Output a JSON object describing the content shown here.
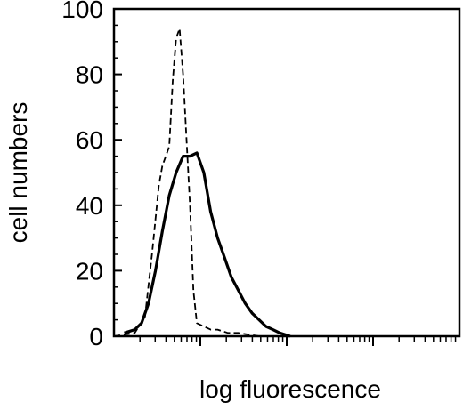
{
  "chart_data": {
    "type": "line",
    "xlabel": "log fluorescence",
    "ylabel": "cell numbers",
    "x_scale": "log",
    "x_range_decades": 4,
    "ylim": [
      0,
      100
    ],
    "y_ticks": [
      0,
      20,
      40,
      60,
      80,
      100
    ],
    "grid": false,
    "legend": "none",
    "series": [
      {
        "style": "dashed",
        "color": "#000000",
        "x": [
          0.0,
          0.06,
          0.09,
          0.11,
          0.13,
          0.14,
          0.16,
          0.17,
          0.18,
          0.19,
          0.2,
          0.21,
          0.22,
          0.23,
          0.24,
          0.26,
          0.28,
          0.3,
          0.33,
          0.36,
          0.42,
          0.5
        ],
        "y": [
          0,
          1,
          6,
          25,
          46,
          52,
          58,
          78,
          91,
          94,
          80,
          60,
          40,
          14,
          4,
          3,
          2,
          2,
          1,
          1,
          0,
          0
        ]
      },
      {
        "style": "solid",
        "color": "#000000",
        "x": [
          0.03,
          0.06,
          0.08,
          0.1,
          0.12,
          0.14,
          0.16,
          0.18,
          0.2,
          0.22,
          0.24,
          0.26,
          0.28,
          0.3,
          0.32,
          0.34,
          0.36,
          0.38,
          0.4,
          0.42,
          0.44,
          0.46,
          0.48,
          0.51
        ],
        "y": [
          1,
          2,
          4,
          10,
          20,
          32,
          43,
          50,
          55,
          55,
          56,
          50,
          38,
          30,
          24,
          18,
          14,
          10,
          7,
          5,
          3,
          2,
          1,
          0
        ]
      }
    ]
  }
}
